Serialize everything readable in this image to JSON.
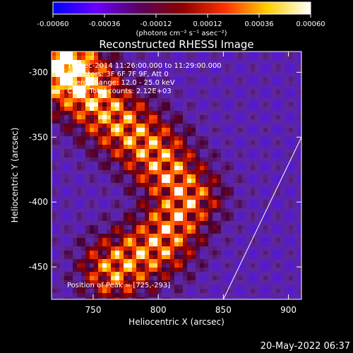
{
  "colorbar": {
    "ticks": [
      "-0.00060",
      "-0.00036",
      "-0.00012",
      "0.00012",
      "0.00036",
      "0.00060"
    ],
    "unit_label": "(photons cm⁻² s⁻¹ asec⁻²)",
    "colors": [
      "#0000ff",
      "#6a00ff",
      "#5a0060",
      "#8a0000",
      "#ff3000",
      "#ffd000",
      "#ffffff"
    ]
  },
  "chart_data": {
    "type": "heatmap",
    "title": "Reconstructed RHESSI Image",
    "xlabel": "Heliocentric X (arcsec)",
    "ylabel": "Heliocentric Y (arcsec)",
    "xlim": [
      718,
      910
    ],
    "ylim": [
      -475,
      -284
    ],
    "xticks": [
      750,
      800,
      850,
      900
    ],
    "yticks": [
      -300,
      -350,
      -400,
      -450
    ],
    "annotations": [
      "16-Dec-2014 11:26:00.000 to 11:29:00.000",
      "Detectors: 3F 6F 7F 9F, Att 0",
      "Energy Range: 12.0 - 25.0 keV",
      "Clean    Total counts: 2.12E+03"
    ],
    "peak_label": "Position of Peak = [725,-293]",
    "peak": [
      725,
      -293
    ],
    "limb_line": [
      [
        850,
        -475
      ],
      [
        910,
        -350
      ]
    ],
    "ridge": [
      [
        725,
        -293
      ],
      [
        760,
        -330
      ],
      [
        795,
        -360
      ],
      [
        820,
        -395
      ],
      [
        800,
        -430
      ],
      [
        765,
        -450
      ]
    ]
  },
  "footer": {
    "timestamp": "20-May-2022 06:37"
  }
}
